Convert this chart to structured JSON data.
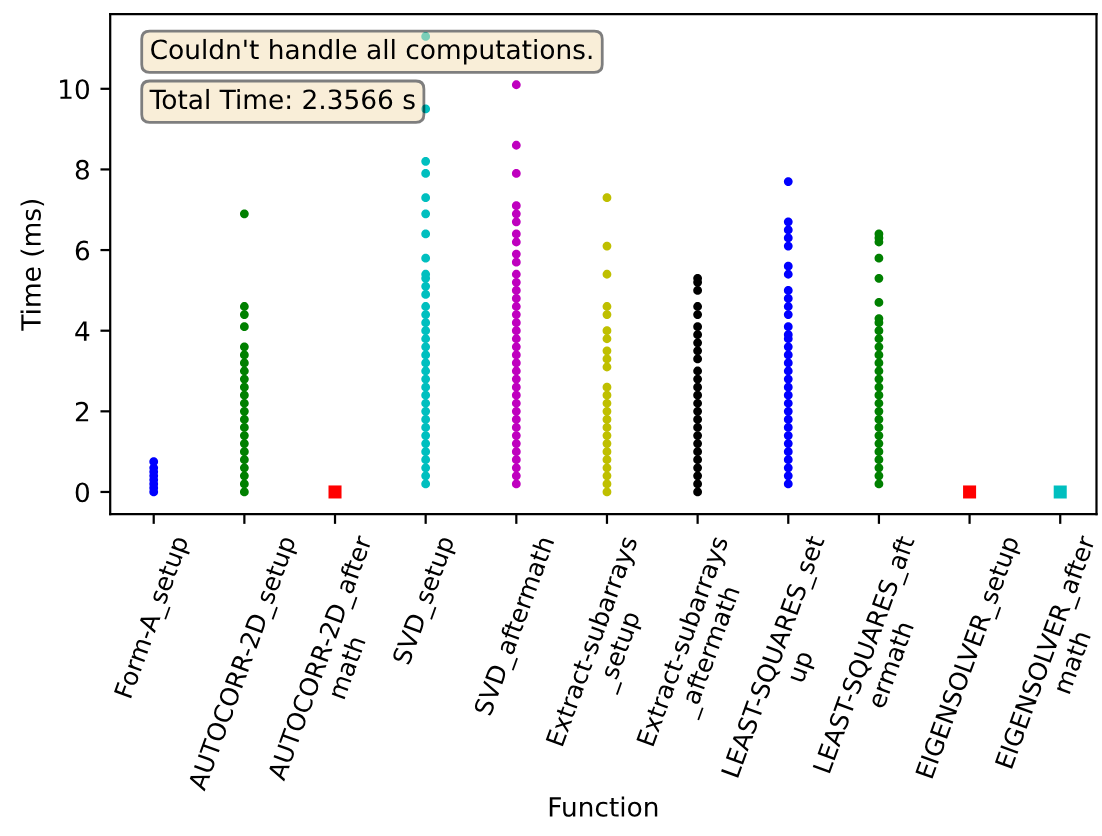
{
  "chart_data": {
    "type": "scatter",
    "xlabel": "Function",
    "ylabel": "Time (ms)",
    "annotations": [
      "Couldn't handle all computations.",
      "Total Time: 2.3566 s"
    ],
    "categories": [
      "Form-A_setup",
      "AUTOCORR-2D_setup",
      "AUTOCORR-2D_after\nmath",
      "SVD_setup",
      "SVD_aftermath",
      "Extract-subarrays\n_setup",
      "Extract-subarrays\n_aftermath",
      "LEAST-SQUARES_set\nup",
      "LEAST-SQUARES_aft\nermath",
      "EIGENSOLVER_setup",
      "EIGENSOLVER_after\nmath"
    ],
    "ylim": [
      -0.55,
      11.85
    ],
    "yticks": [
      0,
      2,
      4,
      6,
      8,
      10
    ],
    "series": [
      {
        "color": "#0000ff",
        "marker": "circle",
        "x": [
          "Form-A_setup",
          "Form-A_setup",
          "Form-A_setup",
          "Form-A_setup",
          "Form-A_setup",
          "Form-A_setup",
          "Form-A_setup",
          "Form-A_setup"
        ],
        "values": [
          0,
          0.1,
          0.2,
          0.3,
          0.4,
          0.5,
          0.6,
          0.75
        ]
      },
      {
        "color": "#008000",
        "marker": "circle",
        "x": [
          "AUTOCORR-2D_setup",
          "AUTOCORR-2D_setup",
          "AUTOCORR-2D_setup",
          "AUTOCORR-2D_setup",
          "AUTOCORR-2D_setup",
          "AUTOCORR-2D_setup",
          "AUTOCORR-2D_setup",
          "AUTOCORR-2D_setup",
          "AUTOCORR-2D_setup",
          "AUTOCORR-2D_setup",
          "AUTOCORR-2D_setup",
          "AUTOCORR-2D_setup",
          "AUTOCORR-2D_setup",
          "AUTOCORR-2D_setup",
          "AUTOCORR-2D_setup",
          "AUTOCORR-2D_setup",
          "AUTOCORR-2D_setup",
          "AUTOCORR-2D_setup",
          "AUTOCORR-2D_setup",
          "AUTOCORR-2D_setup",
          "AUTOCORR-2D_setup",
          "AUTOCORR-2D_setup",
          "AUTOCORR-2D_setup"
        ],
        "values": [
          0,
          0.2,
          0.4,
          0.6,
          0.8,
          1.0,
          1.2,
          1.4,
          1.6,
          1.8,
          2.0,
          2.2,
          2.4,
          2.6,
          2.8,
          3.0,
          3.2,
          3.4,
          3.6,
          4.1,
          4.4,
          4.6,
          6.9
        ]
      },
      {
        "color": "#ff0000",
        "marker": "square",
        "x": [
          "AUTOCORR-2D_after\nmath"
        ],
        "values": [
          0
        ]
      },
      {
        "color": "#00bfbf",
        "marker": "circle",
        "x": [
          "SVD_setup",
          "SVD_setup",
          "SVD_setup",
          "SVD_setup",
          "SVD_setup",
          "SVD_setup",
          "SVD_setup",
          "SVD_setup",
          "SVD_setup",
          "SVD_setup",
          "SVD_setup",
          "SVD_setup",
          "SVD_setup",
          "SVD_setup",
          "SVD_setup",
          "SVD_setup",
          "SVD_setup",
          "SVD_setup",
          "SVD_setup",
          "SVD_setup",
          "SVD_setup",
          "SVD_setup",
          "SVD_setup",
          "SVD_setup",
          "SVD_setup",
          "SVD_setup",
          "SVD_setup",
          "SVD_setup",
          "SVD_setup",
          "SVD_setup",
          "SVD_setup",
          "SVD_setup",
          "SVD_setup",
          "SVD_setup",
          "SVD_setup"
        ],
        "values": [
          0.2,
          0.4,
          0.6,
          0.8,
          1.0,
          1.2,
          1.4,
          1.6,
          1.8,
          2.0,
          2.2,
          2.4,
          2.6,
          2.8,
          3.0,
          3.2,
          3.4,
          3.6,
          3.8,
          4.0,
          4.2,
          4.4,
          4.6,
          4.9,
          5.1,
          5.3,
          5.4,
          5.8,
          6.4,
          6.9,
          7.3,
          7.9,
          8.2,
          9.5,
          11.3
        ]
      },
      {
        "color": "#bf00bf",
        "marker": "circle",
        "x": [
          "SVD_aftermath",
          "SVD_aftermath",
          "SVD_aftermath",
          "SVD_aftermath",
          "SVD_aftermath",
          "SVD_aftermath",
          "SVD_aftermath",
          "SVD_aftermath",
          "SVD_aftermath",
          "SVD_aftermath",
          "SVD_aftermath",
          "SVD_aftermath",
          "SVD_aftermath",
          "SVD_aftermath",
          "SVD_aftermath",
          "SVD_aftermath",
          "SVD_aftermath",
          "SVD_aftermath",
          "SVD_aftermath",
          "SVD_aftermath",
          "SVD_aftermath",
          "SVD_aftermath",
          "SVD_aftermath",
          "SVD_aftermath",
          "SVD_aftermath",
          "SVD_aftermath",
          "SVD_aftermath",
          "SVD_aftermath",
          "SVD_aftermath",
          "SVD_aftermath",
          "SVD_aftermath",
          "SVD_aftermath",
          "SVD_aftermath",
          "SVD_aftermath",
          "SVD_aftermath",
          "SVD_aftermath",
          "SVD_aftermath"
        ],
        "values": [
          0.2,
          0.4,
          0.6,
          0.8,
          1.0,
          1.2,
          1.4,
          1.6,
          1.8,
          2.0,
          2.2,
          2.4,
          2.6,
          2.8,
          3.0,
          3.2,
          3.4,
          3.6,
          3.8,
          4.0,
          4.2,
          4.4,
          4.6,
          4.8,
          5.0,
          5.2,
          5.4,
          5.7,
          5.9,
          6.2,
          6.4,
          6.7,
          6.9,
          7.1,
          7.9,
          8.6,
          10.1
        ]
      },
      {
        "color": "#bfbf00",
        "marker": "circle",
        "x": [
          "Extract-subarrays\n_setup",
          "Extract-subarrays\n_setup",
          "Extract-subarrays\n_setup",
          "Extract-subarrays\n_setup",
          "Extract-subarrays\n_setup",
          "Extract-subarrays\n_setup",
          "Extract-subarrays\n_setup",
          "Extract-subarrays\n_setup",
          "Extract-subarrays\n_setup",
          "Extract-subarrays\n_setup",
          "Extract-subarrays\n_setup",
          "Extract-subarrays\n_setup",
          "Extract-subarrays\n_setup",
          "Extract-subarrays\n_setup",
          "Extract-subarrays\n_setup",
          "Extract-subarrays\n_setup",
          "Extract-subarrays\n_setup",
          "Extract-subarrays\n_setup",
          "Extract-subarrays\n_setup",
          "Extract-subarrays\n_setup",
          "Extract-subarrays\n_setup",
          "Extract-subarrays\n_setup",
          "Extract-subarrays\n_setup",
          "Extract-subarrays\n_setup"
        ],
        "values": [
          0,
          0.2,
          0.4,
          0.6,
          0.8,
          1.0,
          1.2,
          1.4,
          1.6,
          1.8,
          2.0,
          2.2,
          2.4,
          2.6,
          3.1,
          3.3,
          3.5,
          3.8,
          4.0,
          4.4,
          4.6,
          5.4,
          6.1,
          7.3
        ]
      },
      {
        "color": "#000000",
        "marker": "circle",
        "x": [
          "Extract-subarrays\n_aftermath",
          "Extract-subarrays\n_aftermath",
          "Extract-subarrays\n_aftermath",
          "Extract-subarrays\n_aftermath",
          "Extract-subarrays\n_aftermath",
          "Extract-subarrays\n_aftermath",
          "Extract-subarrays\n_aftermath",
          "Extract-subarrays\n_aftermath",
          "Extract-subarrays\n_aftermath",
          "Extract-subarrays\n_aftermath",
          "Extract-subarrays\n_aftermath",
          "Extract-subarrays\n_aftermath",
          "Extract-subarrays\n_aftermath",
          "Extract-subarrays\n_aftermath",
          "Extract-subarrays\n_aftermath",
          "Extract-subarrays\n_aftermath",
          "Extract-subarrays\n_aftermath",
          "Extract-subarrays\n_aftermath",
          "Extract-subarrays\n_aftermath",
          "Extract-subarrays\n_aftermath",
          "Extract-subarrays\n_aftermath",
          "Extract-subarrays\n_aftermath",
          "Extract-subarrays\n_aftermath",
          "Extract-subarrays\n_aftermath",
          "Extract-subarrays\n_aftermath",
          "Extract-subarrays\n_aftermath"
        ],
        "values": [
          0,
          0.2,
          0.4,
          0.6,
          0.8,
          1.0,
          1.2,
          1.4,
          1.6,
          1.8,
          2.0,
          2.2,
          2.4,
          2.6,
          2.8,
          3.0,
          3.3,
          3.5,
          3.7,
          3.9,
          4.1,
          4.4,
          4.6,
          5.0,
          5.2,
          5.3
        ]
      },
      {
        "color": "#0000ff",
        "marker": "circle",
        "x": [
          "LEAST-SQUARES_set\nup",
          "LEAST-SQUARES_set\nup",
          "LEAST-SQUARES_set\nup",
          "LEAST-SQUARES_set\nup",
          "LEAST-SQUARES_set\nup",
          "LEAST-SQUARES_set\nup",
          "LEAST-SQUARES_set\nup",
          "LEAST-SQUARES_set\nup",
          "LEAST-SQUARES_set\nup",
          "LEAST-SQUARES_set\nup",
          "LEAST-SQUARES_set\nup",
          "LEAST-SQUARES_set\nup",
          "LEAST-SQUARES_set\nup",
          "LEAST-SQUARES_set\nup",
          "LEAST-SQUARES_set\nup",
          "LEAST-SQUARES_set\nup",
          "LEAST-SQUARES_set\nup",
          "LEAST-SQUARES_set\nup",
          "LEAST-SQUARES_set\nup",
          "LEAST-SQUARES_set\nup",
          "LEAST-SQUARES_set\nup",
          "LEAST-SQUARES_set\nup",
          "LEAST-SQUARES_set\nup",
          "LEAST-SQUARES_set\nup",
          "LEAST-SQUARES_set\nup",
          "LEAST-SQUARES_set\nup",
          "LEAST-SQUARES_set\nup",
          "LEAST-SQUARES_set\nup",
          "LEAST-SQUARES_set\nup",
          "LEAST-SQUARES_set\nup",
          "LEAST-SQUARES_set\nup",
          "LEAST-SQUARES_set\nup"
        ],
        "values": [
          0.2,
          0.4,
          0.6,
          0.8,
          1.0,
          1.2,
          1.4,
          1.6,
          1.8,
          2.0,
          2.2,
          2.4,
          2.6,
          2.8,
          3.0,
          3.2,
          3.4,
          3.6,
          3.8,
          3.9,
          4.1,
          4.4,
          4.6,
          4.8,
          5.0,
          5.4,
          5.6,
          6.1,
          6.3,
          6.5,
          6.7,
          7.7
        ]
      },
      {
        "color": "#008000",
        "marker": "circle",
        "x": [
          "LEAST-SQUARES_aft\nermath",
          "LEAST-SQUARES_aft\nermath",
          "LEAST-SQUARES_aft\nermath",
          "LEAST-SQUARES_aft\nermath",
          "LEAST-SQUARES_aft\nermath",
          "LEAST-SQUARES_aft\nermath",
          "LEAST-SQUARES_aft\nermath",
          "LEAST-SQUARES_aft\nermath",
          "LEAST-SQUARES_aft\nermath",
          "LEAST-SQUARES_aft\nermath",
          "LEAST-SQUARES_aft\nermath",
          "LEAST-SQUARES_aft\nermath",
          "LEAST-SQUARES_aft\nermath",
          "LEAST-SQUARES_aft\nermath",
          "LEAST-SQUARES_aft\nermath",
          "LEAST-SQUARES_aft\nermath",
          "LEAST-SQUARES_aft\nermath",
          "LEAST-SQUARES_aft\nermath",
          "LEAST-SQUARES_aft\nermath",
          "LEAST-SQUARES_aft\nermath",
          "LEAST-SQUARES_aft\nermath",
          "LEAST-SQUARES_aft\nermath",
          "LEAST-SQUARES_aft\nermath",
          "LEAST-SQUARES_aft\nermath",
          "LEAST-SQUARES_aft\nermath",
          "LEAST-SQUARES_aft\nermath",
          "LEAST-SQUARES_aft\nermath",
          "LEAST-SQUARES_aft\nermath"
        ],
        "values": [
          0.2,
          0.4,
          0.6,
          0.8,
          1.0,
          1.2,
          1.4,
          1.6,
          1.8,
          2.0,
          2.2,
          2.4,
          2.6,
          2.8,
          3.0,
          3.2,
          3.4,
          3.6,
          3.8,
          4.0,
          4.2,
          4.3,
          4.7,
          5.3,
          5.8,
          6.2,
          6.3,
          6.4
        ]
      },
      {
        "color": "#ff0000",
        "marker": "square",
        "x": [
          "EIGENSOLVER_setup"
        ],
        "values": [
          0
        ]
      },
      {
        "color": "#00bfbf",
        "marker": "square",
        "x": [
          "EIGENSOLVER_after\nmath"
        ],
        "values": [
          0
        ]
      }
    ]
  }
}
